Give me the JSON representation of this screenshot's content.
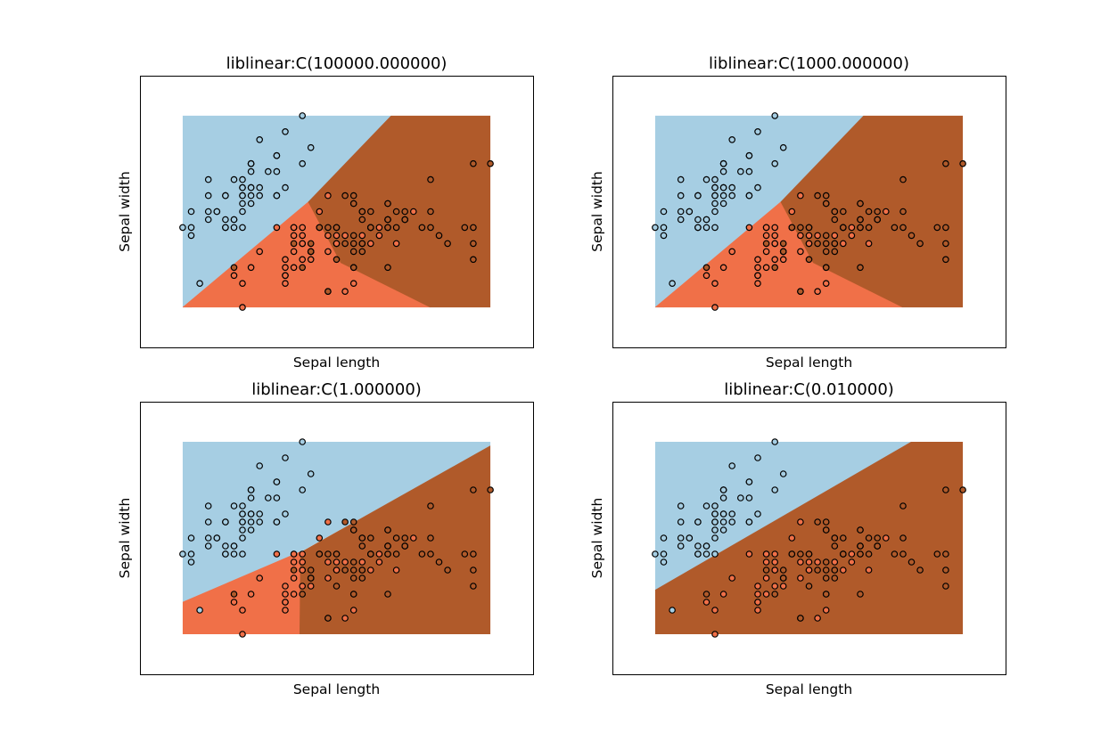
{
  "colors": {
    "class_0": "#a6cee3",
    "class_1": "#f07048",
    "class_2": "#b05a2a",
    "point_edge": "#000000",
    "axes_frame": "#000000"
  },
  "chart_data": [
    {
      "type": "scatter",
      "title": "liblinear:C(100000.000000)",
      "xlabel": "Sepal length",
      "ylabel": "Sepal width",
      "xlim": [
        3.8,
        8.4
      ],
      "ylim": [
        1.5,
        4.9
      ],
      "region_x": [
        4.3,
        7.9
      ],
      "region_y": [
        2.0,
        4.4
      ],
      "ticks_shown": false,
      "legend": "none",
      "regions": [
        {
          "class": 0,
          "polygon": [
            [
              4.3,
              4.4
            ],
            [
              6.74,
              4.4
            ],
            [
              5.77,
              3.32
            ],
            [
              4.3,
              1.9
            ]
          ]
        },
        {
          "class": 1,
          "polygon": [
            [
              4.3,
              2.0
            ],
            [
              5.77,
              3.32
            ],
            [
              6.15,
              2.56
            ],
            [
              7.2,
              2.0
            ]
          ]
        },
        {
          "class": 2,
          "polygon": [
            [
              6.74,
              4.4
            ],
            [
              7.9,
              4.4
            ],
            [
              7.9,
              2.0
            ],
            [
              7.2,
              2.0
            ],
            [
              6.15,
              2.56
            ],
            [
              5.77,
              3.32
            ]
          ]
        }
      ]
    },
    {
      "type": "scatter",
      "title": "liblinear:C(1000.000000)",
      "xlabel": "Sepal length",
      "ylabel": "Sepal width",
      "xlim": [
        3.8,
        8.4
      ],
      "ylim": [
        1.5,
        4.9
      ],
      "region_x": [
        4.3,
        7.9
      ],
      "region_y": [
        2.0,
        4.4
      ],
      "ticks_shown": false,
      "legend": "none",
      "regions": [
        {
          "class": 0,
          "polygon": [
            [
              4.3,
              4.4
            ],
            [
              6.74,
              4.4
            ],
            [
              5.77,
              3.32
            ],
            [
              4.3,
              1.9
            ]
          ]
        },
        {
          "class": 1,
          "polygon": [
            [
              4.3,
              2.0
            ],
            [
              5.77,
              3.32
            ],
            [
              6.15,
              2.56
            ],
            [
              7.2,
              2.0
            ]
          ]
        },
        {
          "class": 2,
          "polygon": [
            [
              6.74,
              4.4
            ],
            [
              7.9,
              4.4
            ],
            [
              7.9,
              2.0
            ],
            [
              7.2,
              2.0
            ],
            [
              6.15,
              2.56
            ],
            [
              5.77,
              3.32
            ]
          ]
        }
      ]
    },
    {
      "type": "scatter",
      "title": "liblinear:C(1.000000)",
      "xlabel": "Sepal length",
      "ylabel": "Sepal width",
      "xlim": [
        3.8,
        8.4
      ],
      "ylim": [
        1.5,
        4.9
      ],
      "region_x": [
        4.3,
        7.9
      ],
      "region_y": [
        2.0,
        4.4
      ],
      "ticks_shown": false,
      "legend": "none",
      "regions": [
        {
          "class": 0,
          "polygon": [
            [
              4.3,
              4.4
            ],
            [
              7.9,
              4.4
            ],
            [
              7.9,
              4.35
            ],
            [
              5.68,
              3.03
            ],
            [
              4.3,
              2.4
            ]
          ]
        },
        {
          "class": 1,
          "polygon": [
            [
              4.3,
              2.4
            ],
            [
              5.68,
              3.03
            ],
            [
              5.68,
              3.02
            ],
            [
              5.67,
              2.0
            ],
            [
              4.3,
              2.0
            ]
          ]
        },
        {
          "class": 2,
          "polygon": [
            [
              5.68,
              3.02
            ],
            [
              7.9,
              4.35
            ],
            [
              7.9,
              2.0
            ],
            [
              5.67,
              2.0
            ]
          ]
        }
      ]
    },
    {
      "type": "scatter",
      "title": "liblinear:C(0.010000)",
      "xlabel": "Sepal length",
      "ylabel": "Sepal width",
      "xlim": [
        3.8,
        8.4
      ],
      "ylim": [
        1.5,
        4.9
      ],
      "region_x": [
        4.3,
        7.9
      ],
      "region_y": [
        2.0,
        4.4
      ],
      "ticks_shown": false,
      "legend": "none",
      "regions": [
        {
          "class": 0,
          "polygon": [
            [
              4.3,
              4.4
            ],
            [
              7.3,
              4.4
            ],
            [
              4.3,
              2.55
            ]
          ]
        },
        {
          "class": 2,
          "polygon": [
            [
              4.3,
              2.55
            ],
            [
              7.3,
              4.4
            ],
            [
              7.9,
              4.4
            ],
            [
              7.9,
              2.0
            ],
            [
              4.3,
              2.0
            ]
          ]
        }
      ]
    }
  ],
  "points": [
    [
      5.1,
      3.5,
      0
    ],
    [
      4.9,
      3.0,
      0
    ],
    [
      4.7,
      3.2,
      0
    ],
    [
      4.6,
      3.1,
      0
    ],
    [
      5.0,
      3.6,
      0
    ],
    [
      5.4,
      3.9,
      0
    ],
    [
      4.6,
      3.4,
      0
    ],
    [
      5.0,
      3.4,
      0
    ],
    [
      4.4,
      2.9,
      0
    ],
    [
      4.9,
      3.1,
      0
    ],
    [
      5.4,
      3.7,
      0
    ],
    [
      4.8,
      3.4,
      0
    ],
    [
      4.8,
      3.0,
      0
    ],
    [
      4.3,
      3.0,
      0
    ],
    [
      5.8,
      4.0,
      0
    ],
    [
      5.7,
      4.4,
      0
    ],
    [
      5.4,
      3.9,
      0
    ],
    [
      5.1,
      3.5,
      0
    ],
    [
      5.7,
      3.8,
      0
    ],
    [
      5.1,
      3.8,
      0
    ],
    [
      5.4,
      3.4,
      0
    ],
    [
      5.1,
      3.7,
      0
    ],
    [
      4.6,
      3.6,
      0
    ],
    [
      5.1,
      3.3,
      0
    ],
    [
      4.8,
      3.4,
      0
    ],
    [
      5.0,
      3.0,
      0
    ],
    [
      5.0,
      3.4,
      0
    ],
    [
      5.2,
      3.5,
      0
    ],
    [
      5.2,
      3.4,
      0
    ],
    [
      4.7,
      3.2,
      0
    ],
    [
      4.8,
      3.1,
      0
    ],
    [
      5.4,
      3.4,
      0
    ],
    [
      5.2,
      4.1,
      0
    ],
    [
      5.5,
      4.2,
      0
    ],
    [
      4.9,
      3.1,
      0
    ],
    [
      5.0,
      3.2,
      0
    ],
    [
      5.5,
      3.5,
      0
    ],
    [
      4.9,
      3.6,
      0
    ],
    [
      4.4,
      3.0,
      0
    ],
    [
      5.1,
      3.4,
      0
    ],
    [
      5.0,
      3.5,
      0
    ],
    [
      4.5,
      2.3,
      0
    ],
    [
      4.4,
      3.2,
      0
    ],
    [
      5.0,
      3.5,
      0
    ],
    [
      5.1,
      3.8,
      0
    ],
    [
      4.8,
      3.0,
      0
    ],
    [
      5.1,
      3.8,
      0
    ],
    [
      4.6,
      3.2,
      0
    ],
    [
      5.3,
      3.7,
      0
    ],
    [
      5.0,
      3.3,
      0
    ],
    [
      7.0,
      3.2,
      1
    ],
    [
      6.4,
      3.2,
      1
    ],
    [
      6.9,
      3.1,
      1
    ],
    [
      5.5,
      2.3,
      1
    ],
    [
      6.5,
      2.8,
      1
    ],
    [
      5.7,
      2.8,
      1
    ],
    [
      6.3,
      3.3,
      1
    ],
    [
      4.9,
      2.4,
      1
    ],
    [
      6.6,
      2.9,
      1
    ],
    [
      5.2,
      2.7,
      1
    ],
    [
      5.0,
      2.0,
      1
    ],
    [
      5.9,
      3.0,
      1
    ],
    [
      6.0,
      2.2,
      1
    ],
    [
      6.1,
      2.9,
      1
    ],
    [
      5.6,
      2.9,
      1
    ],
    [
      6.7,
      3.1,
      1
    ],
    [
      5.6,
      3.0,
      1
    ],
    [
      5.8,
      2.7,
      1
    ],
    [
      6.2,
      2.2,
      1
    ],
    [
      5.6,
      2.5,
      1
    ],
    [
      5.9,
      3.2,
      1
    ],
    [
      6.1,
      2.8,
      1
    ],
    [
      6.3,
      2.5,
      1
    ],
    [
      6.1,
      2.8,
      1
    ],
    [
      6.4,
      2.9,
      1
    ],
    [
      6.6,
      3.0,
      1
    ],
    [
      6.8,
      2.8,
      1
    ],
    [
      6.7,
      3.0,
      1
    ],
    [
      6.0,
      2.9,
      1
    ],
    [
      5.7,
      2.6,
      1
    ],
    [
      5.5,
      2.4,
      1
    ],
    [
      5.5,
      2.4,
      1
    ],
    [
      5.8,
      2.7,
      1
    ],
    [
      6.0,
      2.7,
      1
    ],
    [
      5.4,
      3.0,
      1
    ],
    [
      6.0,
      3.4,
      1
    ],
    [
      6.7,
      3.1,
      1
    ],
    [
      6.3,
      2.3,
      1
    ],
    [
      5.6,
      3.0,
      1
    ],
    [
      5.5,
      2.5,
      1
    ],
    [
      5.5,
      2.6,
      1
    ],
    [
      6.1,
      3.0,
      1
    ],
    [
      5.8,
      2.6,
      1
    ],
    [
      5.0,
      2.3,
      1
    ],
    [
      5.6,
      2.7,
      1
    ],
    [
      5.7,
      3.0,
      1
    ],
    [
      5.7,
      2.9,
      1
    ],
    [
      6.2,
      2.9,
      1
    ],
    [
      5.1,
      2.5,
      1
    ],
    [
      5.7,
      2.8,
      1
    ],
    [
      6.3,
      3.3,
      2
    ],
    [
      5.8,
      2.7,
      2
    ],
    [
      7.1,
      3.0,
      2
    ],
    [
      6.3,
      2.9,
      2
    ],
    [
      6.5,
      3.0,
      2
    ],
    [
      7.6,
      3.0,
      2
    ],
    [
      4.9,
      2.5,
      2
    ],
    [
      7.3,
      2.9,
      2
    ],
    [
      6.7,
      2.5,
      2
    ],
    [
      7.2,
      3.6,
      2
    ],
    [
      6.5,
      3.2,
      2
    ],
    [
      6.4,
      2.7,
      2
    ],
    [
      6.8,
      3.0,
      2
    ],
    [
      5.7,
      2.5,
      2
    ],
    [
      5.8,
      2.8,
      2
    ],
    [
      6.4,
      3.2,
      2
    ],
    [
      6.5,
      3.0,
      2
    ],
    [
      7.7,
      3.8,
      2
    ],
    [
      7.7,
      2.6,
      2
    ],
    [
      6.0,
      2.2,
      2
    ],
    [
      6.9,
      3.2,
      2
    ],
    [
      5.6,
      2.8,
      2
    ],
    [
      7.7,
      2.8,
      2
    ],
    [
      6.3,
      2.7,
      2
    ],
    [
      6.7,
      3.3,
      2
    ],
    [
      7.2,
      3.2,
      2
    ],
    [
      6.2,
      2.8,
      2
    ],
    [
      6.1,
      3.0,
      2
    ],
    [
      6.4,
      2.8,
      2
    ],
    [
      7.2,
      3.0,
      2
    ],
    [
      7.4,
      2.8,
      2
    ],
    [
      7.9,
      3.8,
      2
    ],
    [
      6.4,
      2.8,
      2
    ],
    [
      6.3,
      2.8,
      2
    ],
    [
      6.1,
      2.6,
      2
    ],
    [
      7.7,
      3.0,
      2
    ],
    [
      6.3,
      3.4,
      2
    ],
    [
      6.4,
      3.1,
      2
    ],
    [
      6.0,
      3.0,
      2
    ],
    [
      6.9,
      3.1,
      2
    ],
    [
      6.7,
      3.1,
      2
    ],
    [
      6.9,
      3.1,
      2
    ],
    [
      5.8,
      2.7,
      2
    ],
    [
      6.8,
      3.2,
      2
    ],
    [
      6.7,
      3.3,
      2
    ],
    [
      6.7,
      3.0,
      2
    ],
    [
      6.3,
      2.5,
      2
    ],
    [
      6.5,
      3.0,
      2
    ],
    [
      6.2,
      3.4,
      2
    ],
    [
      5.9,
      3.0,
      2
    ]
  ]
}
